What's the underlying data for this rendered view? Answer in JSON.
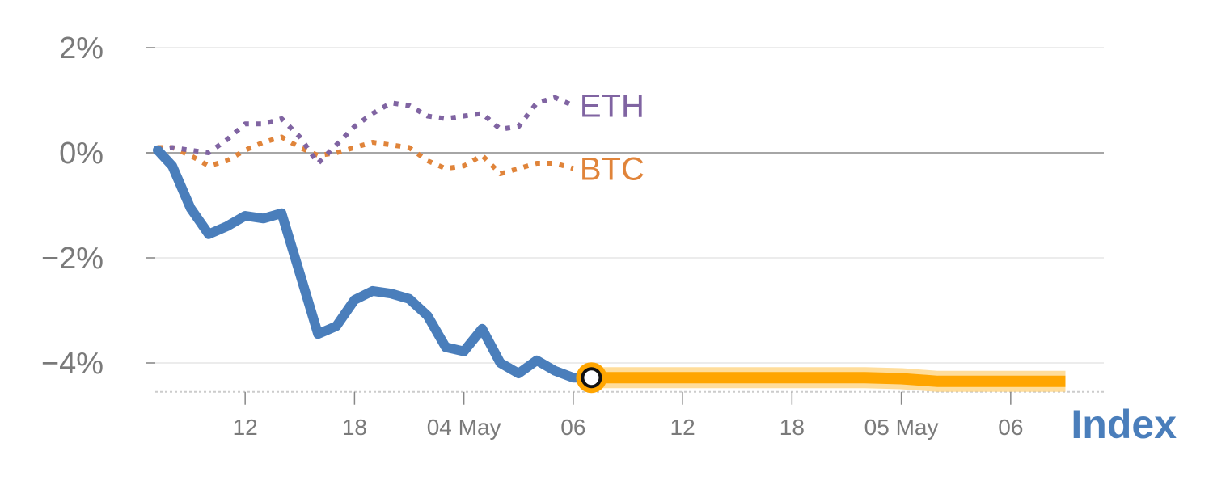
{
  "chart_data": {
    "type": "line",
    "title": "",
    "xlabel": "",
    "ylabel": "",
    "yticks": [
      "2%",
      "0%",
      "−2%",
      "−4%"
    ],
    "ytick_values": [
      2,
      0,
      -2,
      -4
    ],
    "ylim": [
      -4.6,
      2.3
    ],
    "xlim": [
      0,
      50
    ],
    "xticks": [
      {
        "label": "12",
        "x": 4
      },
      {
        "label": "18",
        "x": 10
      },
      {
        "label": "04 May",
        "x": 16
      },
      {
        "label": "06",
        "x": 22
      },
      {
        "label": "12",
        "x": 28
      },
      {
        "label": "18",
        "x": 34
      },
      {
        "label": "05 May",
        "x": 40
      },
      {
        "label": "06",
        "x": 46
      }
    ],
    "zero_line": true,
    "grid": true,
    "colors": {
      "index": "#4a7ebb",
      "eth": "#8064a2",
      "btc": "#e0843a",
      "projection": "#ffa500",
      "projection_band": "#ffd27a",
      "grid": "#e6e6e6",
      "zero": "#888888",
      "tick_text": "#7a7a7a"
    },
    "series": [
      {
        "name": "Index",
        "style": "solid",
        "x": [
          -0.8,
          0,
          1,
          2,
          3,
          4,
          5,
          6,
          7,
          8,
          9,
          10,
          11,
          12,
          13,
          14,
          15,
          16,
          17,
          18,
          19,
          20,
          21,
          22,
          23
        ],
        "y": [
          0.05,
          -0.25,
          -1.05,
          -1.55,
          -1.4,
          -1.2,
          -1.25,
          -1.15,
          -2.3,
          -3.45,
          -3.3,
          -2.8,
          -2.63,
          -2.68,
          -2.78,
          -3.1,
          -3.7,
          -3.78,
          -3.35,
          -4.0,
          -4.2,
          -3.95,
          -4.15,
          -4.28,
          -4.28
        ]
      },
      {
        "name": "ETH",
        "style": "dotted",
        "x": [
          -0.8,
          0,
          1,
          2,
          3,
          4,
          5,
          6,
          7,
          8,
          9,
          10,
          11,
          12,
          13,
          14,
          15,
          16,
          17,
          18,
          19,
          20,
          21,
          22
        ],
        "y": [
          0.05,
          0.1,
          0.05,
          0.0,
          0.25,
          0.55,
          0.55,
          0.65,
          0.3,
          -0.2,
          0.15,
          0.5,
          0.75,
          0.95,
          0.9,
          0.7,
          0.65,
          0.7,
          0.75,
          0.45,
          0.5,
          0.95,
          1.05,
          0.9
        ]
      },
      {
        "name": "BTC",
        "style": "dotted",
        "x": [
          -0.8,
          0,
          1,
          2,
          3,
          4,
          5,
          6,
          7,
          8,
          9,
          10,
          11,
          12,
          13,
          14,
          15,
          16,
          17,
          18,
          19,
          20,
          21,
          22
        ],
        "y": [
          0.1,
          0.1,
          -0.05,
          -0.25,
          -0.15,
          0.05,
          0.2,
          0.3,
          0.1,
          -0.05,
          0.0,
          0.1,
          0.2,
          0.15,
          0.1,
          -0.15,
          -0.3,
          -0.25,
          -0.05,
          -0.4,
          -0.3,
          -0.2,
          -0.2,
          -0.3
        ]
      },
      {
        "name": "Projection",
        "style": "projection",
        "x": [
          23,
          28,
          34,
          38,
          40,
          42,
          46,
          49
        ],
        "y": [
          -4.28,
          -4.28,
          -4.28,
          -4.28,
          -4.3,
          -4.35,
          -4.35,
          -4.35
        ]
      }
    ],
    "series_labels": [
      "ETH",
      "BTC"
    ],
    "index_label": "Index",
    "marker": {
      "x": 23,
      "y": -4.28
    }
  }
}
